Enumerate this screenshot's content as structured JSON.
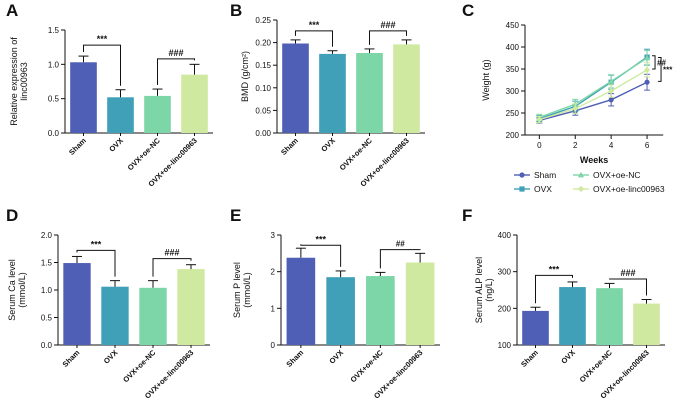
{
  "colors": {
    "Sham": "#4f5fb5",
    "OVX": "#3fa0b8",
    "OVX+oe-NC": "#7dd6a8",
    "OVX+oe-linc00963": "#cfeaa0"
  },
  "chart_data": [
    {
      "id": "A",
      "type": "bar",
      "letter": "A",
      "ylabel": [
        "Relative expression of",
        "linc00963"
      ],
      "categories": [
        "Sham",
        "OVX",
        "OVX+oe-NC",
        "OVX+oe-linc00963"
      ],
      "values": [
        1.03,
        0.52,
        0.54,
        0.85
      ],
      "errors": [
        0.09,
        0.11,
        0.1,
        0.15
      ],
      "ylim": [
        0,
        1.5
      ],
      "ticks": [
        0.0,
        0.5,
        1.0,
        1.5
      ],
      "tick_labels": [
        "0.0",
        "0.5",
        "1.0",
        "1.5"
      ],
      "brackets": [
        {
          "from": 0,
          "to": 1,
          "label": "***",
          "level": 1.28
        },
        {
          "from": 2,
          "to": 3,
          "label": "###",
          "level": 1.08
        }
      ]
    },
    {
      "id": "B",
      "type": "bar",
      "letter": "B",
      "ylabel": [
        "BMD (g/cm²)"
      ],
      "categories": [
        "Sham",
        "OVX",
        "OVX+oe-NC",
        "OVX+oe-linc00963"
      ],
      "values": [
        0.198,
        0.175,
        0.177,
        0.196
      ],
      "errors": [
        0.008,
        0.007,
        0.009,
        0.01
      ],
      "ylim": [
        0,
        0.25
      ],
      "ticks": [
        0,
        0.05,
        0.1,
        0.15,
        0.2,
        0.25
      ],
      "tick_labels": [
        "0.00",
        "0.05",
        "0.10",
        "0.15",
        "0.20",
        "0.25"
      ],
      "brackets": [
        {
          "from": 0,
          "to": 1,
          "label": "***",
          "level": 0.226
        },
        {
          "from": 2,
          "to": 3,
          "label": "###",
          "level": 0.226
        }
      ]
    },
    {
      "id": "C",
      "type": "line",
      "letter": "C",
      "ylabel": [
        "Weight (g)"
      ],
      "xlabel": "Weeks",
      "x": [
        0,
        2,
        4,
        6
      ],
      "xticks": [
        0,
        2,
        4,
        6
      ],
      "ylim": [
        200,
        450
      ],
      "ticks": [
        200,
        250,
        300,
        350,
        400,
        450
      ],
      "tick_labels": [
        "200",
        "250",
        "300",
        "350",
        "400",
        "450"
      ],
      "series": [
        {
          "name": "Sham",
          "values": [
            233,
            255,
            280,
            320
          ],
          "errors": [
            6,
            10,
            14,
            18
          ],
          "marker": "circle"
        },
        {
          "name": "OVX",
          "values": [
            237,
            265,
            320,
            377
          ],
          "errors": [
            7,
            12,
            16,
            18
          ],
          "marker": "square"
        },
        {
          "name": "OVX+oe-NC",
          "values": [
            240,
            270,
            322,
            375
          ],
          "errors": [
            7,
            11,
            15,
            17
          ],
          "marker": "triangle"
        },
        {
          "name": "OVX+oe-linc00963",
          "values": [
            235,
            260,
            300,
            348
          ],
          "errors": [
            7,
            11,
            14,
            16
          ],
          "marker": "diamond"
        }
      ],
      "sig": [
        {
          "label": "##",
          "from": 380,
          "to": 350
        },
        {
          "label": "***",
          "from": 376,
          "to": 322
        }
      ],
      "legend": [
        "Sham",
        "OVX+oe-NC",
        "OVX",
        "OVX+oe-linc00963"
      ]
    },
    {
      "id": "D",
      "type": "bar",
      "letter": "D",
      "ylabel": [
        "Serum Ca level",
        "(mmol/L)"
      ],
      "categories": [
        "Sham",
        "OVX",
        "OVX+oe-NC",
        "OVX+oe-linc00963"
      ],
      "values": [
        1.49,
        1.06,
        1.04,
        1.38
      ],
      "errors": [
        0.12,
        0.11,
        0.13,
        0.08
      ],
      "ylim": [
        0,
        2.0
      ],
      "ticks": [
        0,
        0.5,
        1.0,
        1.5,
        2.0
      ],
      "tick_labels": [
        "0.0",
        "0.5",
        "1.0",
        "1.5",
        "2.0"
      ],
      "brackets": [
        {
          "from": 0,
          "to": 1,
          "label": "***",
          "level": 1.72
        },
        {
          "from": 2,
          "to": 3,
          "label": "###",
          "level": 1.57
        }
      ]
    },
    {
      "id": "E",
      "type": "bar",
      "letter": "E",
      "ylabel": [
        "Serum P level",
        "(mmol/L)"
      ],
      "categories": [
        "Sham",
        "OVX",
        "OVX+oe-NC",
        "OVX+oe-linc00963"
      ],
      "values": [
        2.38,
        1.85,
        1.88,
        2.25
      ],
      "errors": [
        0.26,
        0.17,
        0.1,
        0.25
      ],
      "ylim": [
        0,
        3
      ],
      "ticks": [
        0,
        1,
        2,
        3
      ],
      "tick_labels": [
        "0",
        "1",
        "2",
        "3"
      ],
      "brackets": [
        {
          "from": 0,
          "to": 1,
          "label": "***",
          "level": 2.72
        },
        {
          "from": 2,
          "to": 3,
          "label": "##",
          "level": 2.6
        }
      ]
    },
    {
      "id": "F",
      "type": "bar",
      "letter": "F",
      "ylabel": [
        "Serum ALP level",
        "(ng/L)"
      ],
      "categories": [
        "Sham",
        "OVX",
        "OVX+oe-NC",
        "OVX+oe-linc00963"
      ],
      "values": [
        193,
        258,
        255,
        213
      ],
      "errors": [
        10,
        14,
        13,
        11
      ],
      "ylim": [
        100,
        400
      ],
      "ticks": [
        100,
        200,
        300,
        400
      ],
      "tick_labels": [
        "100",
        "200",
        "300",
        "400"
      ],
      "brackets": [
        {
          "from": 0,
          "to": 1,
          "label": "***",
          "level": 290
        },
        {
          "from": 2,
          "to": 3,
          "label": "###",
          "level": 280
        }
      ]
    }
  ]
}
